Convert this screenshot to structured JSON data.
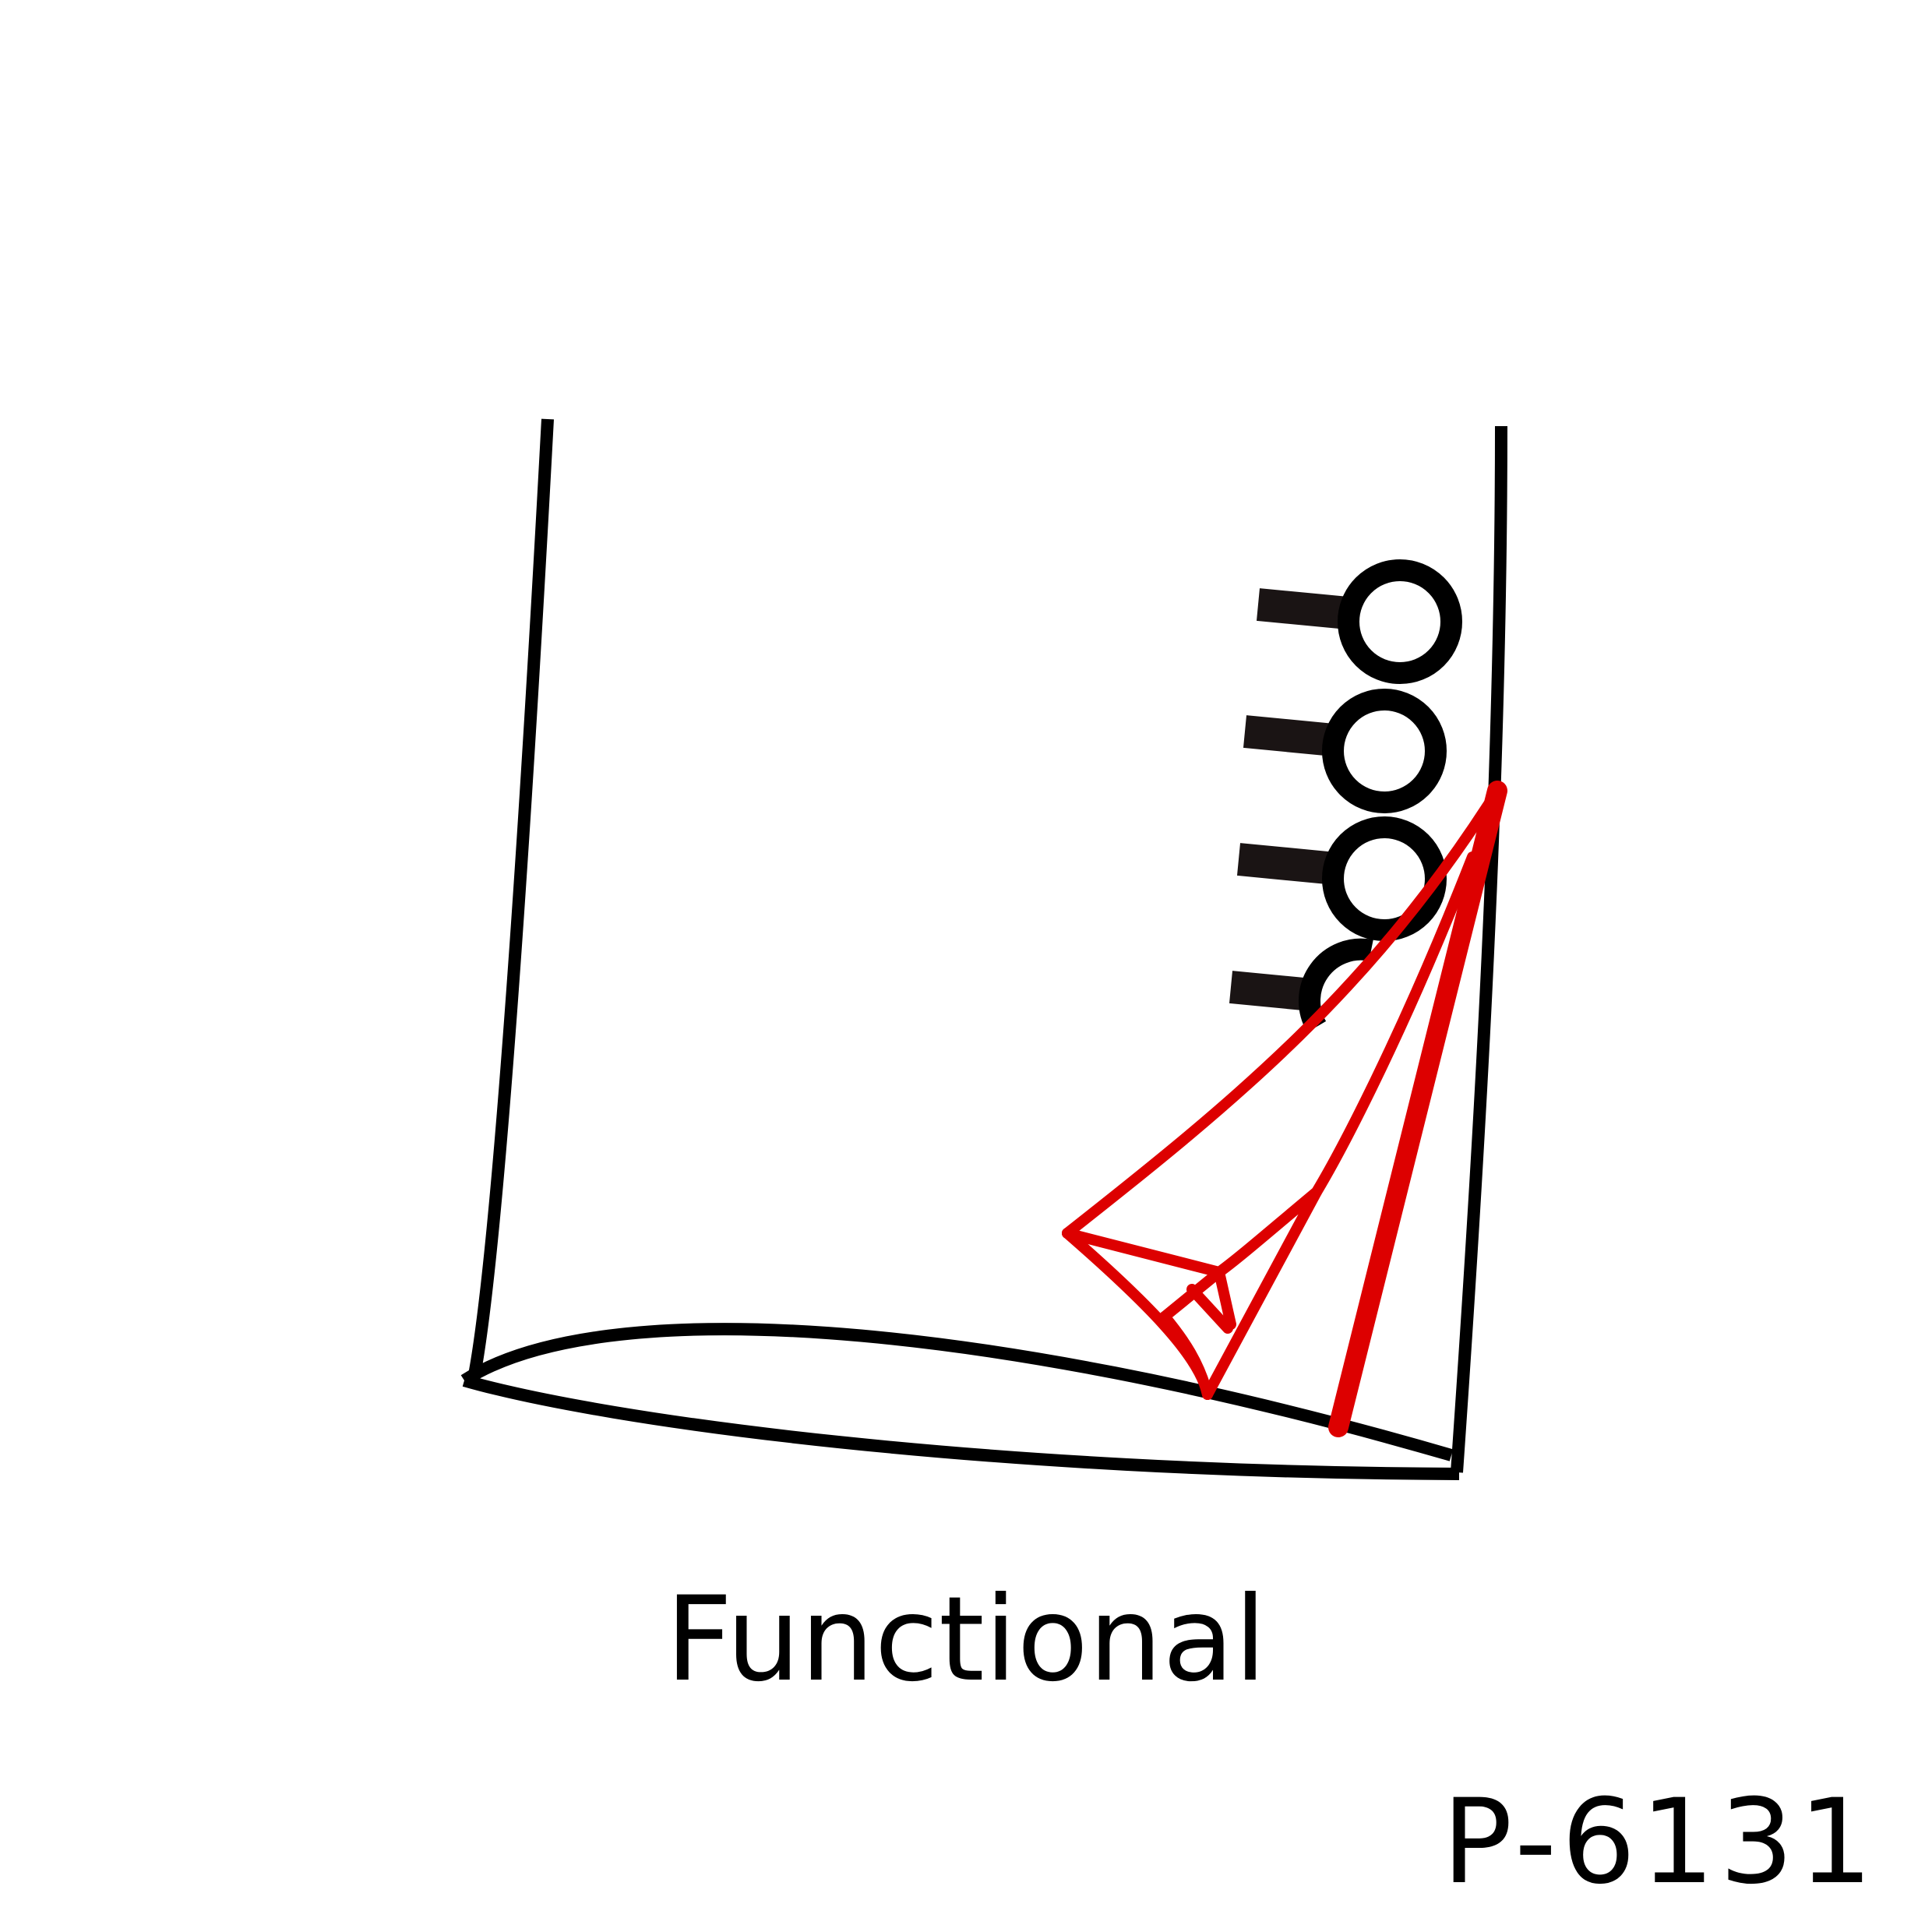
{
  "diagram": {
    "caption": "Functional",
    "code": "P-6131",
    "button_count": 4,
    "colors": {
      "outline": "#000000",
      "button": "#000000",
      "buttonhole": "#1a1414",
      "highlight": "#dd0000",
      "background": "#ffffff"
    },
    "icons": {
      "sleeve": "sleeve-outline-icon",
      "button": "ring-button-icon",
      "buttonhole": "buttonhole-slit-icon",
      "pointer": "red-folded-corner-icon"
    }
  }
}
